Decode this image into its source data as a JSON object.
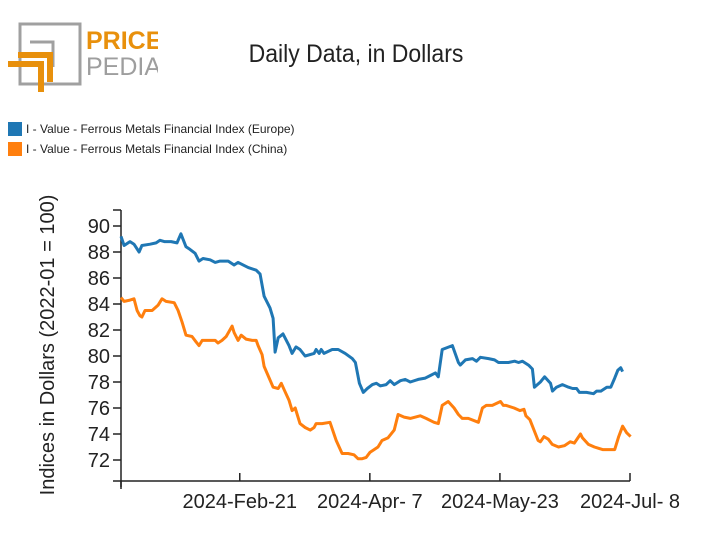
{
  "brand": {
    "line1": "PRICE",
    "line2": "PEDIA",
    "colors": {
      "accent": "#e8900c",
      "gray": "#9e9e9e"
    }
  },
  "chart_data": {
    "type": "line",
    "title": "Daily Data, in Dollars",
    "xlabel": "",
    "ylabel": "Indices in Dollars (2022-01 = 100)",
    "ylim": [
      70.5,
      91
    ],
    "yticks": [
      72,
      74,
      76,
      78,
      80,
      82,
      84,
      86,
      88,
      90
    ],
    "x_tick_labels": [
      "2024-Feb-21",
      "2024-Apr- 7",
      "2024-May-23",
      "2024-Jul- 8"
    ],
    "x_tick_days": [
      42,
      88,
      134,
      180
    ],
    "x_range_days": [
      0,
      180
    ],
    "x_unit": "days since 2024-Jan-10",
    "grid": false,
    "legend_position": "top-left",
    "series": [
      {
        "name": "I - Value - Ferrous Metals Financial Index (Europe)",
        "color": "#1f77b4",
        "x": [
          0,
          1.1,
          3.2,
          4.6,
          6.4,
          7.4,
          10.3,
          12.4,
          13.8,
          15.3,
          17.7,
          19.8,
          21.2,
          23.0,
          24.4,
          26.2,
          27.6,
          29.0,
          31.5,
          33.3,
          35.0,
          37.9,
          40.0,
          41.4,
          45.0,
          47.8,
          49.2,
          50.6,
          52.7,
          53.8,
          54.5,
          55.6,
          57.3,
          59.4,
          60.5,
          61.9,
          63.3,
          65.1,
          68.3,
          69.0,
          70.1,
          70.8,
          71.8,
          74.7,
          76.8,
          79.3,
          81.8,
          82.9,
          84.3,
          85.7,
          87.1,
          88.9,
          90.3,
          91.7,
          93.8,
          95.2,
          96.6,
          98.8,
          100.5,
          102.3,
          105.1,
          107.6,
          109.4,
          111.2,
          112.2,
          113.6,
          117.2,
          119.3,
          120.0,
          121.8,
          124.3,
          125.7,
          127.1,
          130.0,
          132.1,
          133.5,
          137.0,
          139.2,
          140.6,
          142.0,
          144.1,
          145.5,
          146.2,
          148.3,
          149.8,
          151.9,
          152.6,
          154.0,
          156.1,
          158.3,
          159.7,
          161.1,
          162.1,
          164.6,
          167.1,
          168.2,
          169.7,
          171.8,
          173.2,
          174.6,
          175.7,
          176.7,
          177.4
        ],
        "values": [
          89.2,
          88.5,
          88.8,
          88.6,
          88.0,
          88.5,
          88.6,
          88.7,
          88.9,
          88.8,
          88.8,
          88.7,
          89.4,
          88.4,
          88.2,
          87.9,
          87.3,
          87.5,
          87.4,
          87.2,
          87.3,
          87.3,
          87.0,
          87.2,
          86.8,
          86.6,
          86.3,
          84.6,
          83.7,
          82.9,
          80.3,
          81.4,
          81.7,
          80.8,
          80.2,
          80.7,
          80.5,
          80.0,
          80.2,
          80.5,
          80.2,
          80.5,
          80.2,
          80.5,
          80.5,
          80.2,
          79.8,
          79.5,
          77.9,
          77.2,
          77.5,
          77.8,
          77.9,
          77.7,
          77.8,
          78.1,
          77.8,
          78.1,
          78.2,
          78.0,
          78.2,
          78.3,
          78.5,
          78.7,
          78.4,
          80.5,
          80.8,
          79.5,
          79.3,
          79.7,
          79.8,
          79.6,
          79.9,
          79.8,
          79.7,
          79.5,
          79.5,
          79.6,
          79.5,
          79.6,
          79.3,
          79.0,
          77.6,
          78.0,
          78.4,
          77.9,
          77.3,
          77.6,
          77.8,
          77.6,
          77.5,
          77.5,
          77.2,
          77.2,
          77.1,
          77.3,
          77.3,
          77.6,
          77.6,
          78.3,
          78.9,
          79.1,
          78.8
        ]
      },
      {
        "name": "I - Value - Ferrous Metals Financial Index (China)",
        "color": "#ff7f0e",
        "x": [
          0,
          1.1,
          3.2,
          4.6,
          5.7,
          6.7,
          7.4,
          8.5,
          11.0,
          13.1,
          14.5,
          15.9,
          18.8,
          20.2,
          21.6,
          23.0,
          25.1,
          26.5,
          27.6,
          28.7,
          31.5,
          33.3,
          34.3,
          35.7,
          37.2,
          39.3,
          40.0,
          41.4,
          42.5,
          44.2,
          46.4,
          47.8,
          48.5,
          49.9,
          50.6,
          52.4,
          53.8,
          55.6,
          56.7,
          57.7,
          59.4,
          60.5,
          61.6,
          63.3,
          65.1,
          66.9,
          68.3,
          69.0,
          71.1,
          73.9,
          76.1,
          78.2,
          80.3,
          82.4,
          83.8,
          85.3,
          86.7,
          88.1,
          89.5,
          90.9,
          92.3,
          94.4,
          96.6,
          98.0,
          100.1,
          102.3,
          105.8,
          107.9,
          110.7,
          112.2,
          113.6,
          115.7,
          117.8,
          119.3,
          120.7,
          122.8,
          126.4,
          127.8,
          129.2,
          131.3,
          134.2,
          135.2,
          136.2,
          139.0,
          141.1,
          142.5,
          143.2,
          144.6,
          147.5,
          148.3,
          149.6,
          151.1,
          152.5,
          154.7,
          156.8,
          158.9,
          160.3,
          162.5,
          163.2,
          165.3,
          167.4,
          168.9,
          170.3,
          171.7,
          173.1,
          174.6,
          176.0,
          177.4,
          178.8,
          180.2
        ],
        "values": [
          84.5,
          84.2,
          84.3,
          84.4,
          83.5,
          83.1,
          83.0,
          83.5,
          83.5,
          83.9,
          84.4,
          84.2,
          84.1,
          83.5,
          82.6,
          81.6,
          81.5,
          81.1,
          80.8,
          81.2,
          81.2,
          81.2,
          81.0,
          81.2,
          81.5,
          82.3,
          81.8,
          81.2,
          81.6,
          81.3,
          81.2,
          81.2,
          80.8,
          80.1,
          79.2,
          78.3,
          77.6,
          77.5,
          77.9,
          77.4,
          76.6,
          75.8,
          76.0,
          74.8,
          74.5,
          74.3,
          74.5,
          74.8,
          74.8,
          74.9,
          73.5,
          72.5,
          72.5,
          72.4,
          72.1,
          72.1,
          72.2,
          72.6,
          72.8,
          73.0,
          73.5,
          73.7,
          74.3,
          75.5,
          75.3,
          75.2,
          75.4,
          75.2,
          74.9,
          74.8,
          76.2,
          76.5,
          76.0,
          75.5,
          75.2,
          75.2,
          74.9,
          76.0,
          76.2,
          76.2,
          76.5,
          76.2,
          76.2,
          76.0,
          75.8,
          75.9,
          75.4,
          75.1,
          73.5,
          73.4,
          73.8,
          73.6,
          73.2,
          73.0,
          73.1,
          73.4,
          73.3,
          74.0,
          73.7,
          73.2,
          73.0,
          72.9,
          72.8,
          72.8,
          72.8,
          72.8,
          73.8,
          74.6,
          74.1,
          73.8
        ]
      }
    ]
  }
}
